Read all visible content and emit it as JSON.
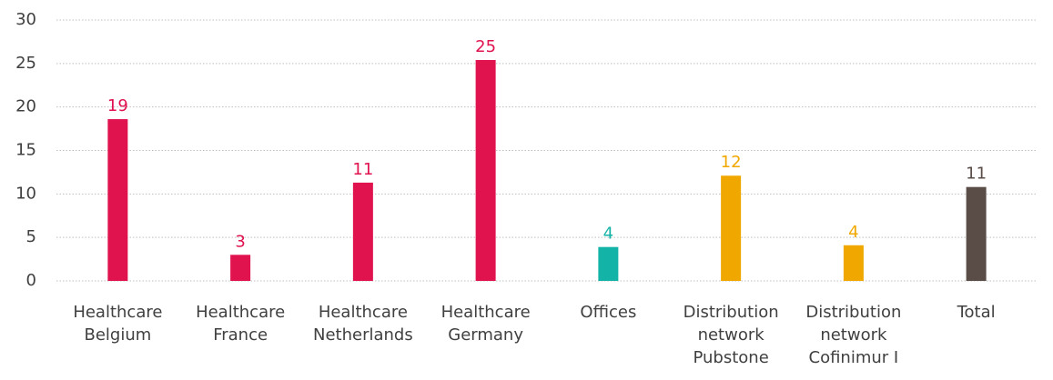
{
  "chart_data": {
    "type": "bar",
    "categories": [
      [
        "Healthcare",
        "Belgium"
      ],
      [
        "Healthcare",
        "France"
      ],
      [
        "Healthcare",
        "Netherlands"
      ],
      [
        "Healthcare",
        "Germany"
      ],
      [
        "Offices"
      ],
      [
        "Distribution",
        "network",
        "Pubstone"
      ],
      [
        "Distribution",
        "network",
        "Cofinimur I"
      ],
      [
        "Total"
      ]
    ],
    "values": [
      18.6,
      3.0,
      11.3,
      25.4,
      3.9,
      12.1,
      4.1,
      10.8
    ],
    "value_labels": [
      "19",
      "3",
      "11",
      "25",
      "4",
      "12",
      "4",
      "11"
    ],
    "colors": [
      "#e0134f",
      "#e0134f",
      "#e0134f",
      "#e0134f",
      "#14b3a8",
      "#f0a800",
      "#f0a800",
      "#5a4d48"
    ],
    "ylim": [
      0,
      30
    ],
    "yticks": [
      0,
      5,
      10,
      15,
      20,
      25,
      30
    ],
    "grid": true
  }
}
